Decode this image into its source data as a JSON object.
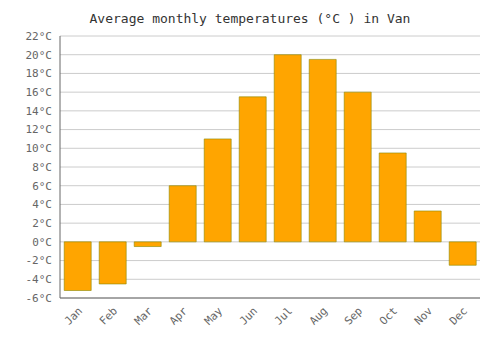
{
  "chart_data": {
    "type": "bar",
    "title": "Average monthly temperatures (°C ) in Van",
    "categories": [
      "Jan",
      "Feb",
      "Mar",
      "Apr",
      "May",
      "Jun",
      "Jul",
      "Aug",
      "Sep",
      "Oct",
      "Nov",
      "Dec"
    ],
    "values": [
      -5.2,
      -4.5,
      -0.5,
      6.0,
      11.0,
      15.5,
      20.0,
      19.5,
      16.0,
      9.5,
      3.3,
      -2.5
    ],
    "color": "#FFA500",
    "ylim": [
      -6,
      22
    ],
    "yticks": [
      {
        "value": -6,
        "label": "-6°C"
      },
      {
        "value": -4,
        "label": "-4°C"
      },
      {
        "value": -2,
        "label": "-2°C"
      },
      {
        "value": 0,
        "label": "0°C"
      },
      {
        "value": 2,
        "label": "2°C"
      },
      {
        "value": 4,
        "label": "4°C"
      },
      {
        "value": 6,
        "label": "6°C"
      },
      {
        "value": 8,
        "label": "8°C"
      },
      {
        "value": 10,
        "label": "10°C"
      },
      {
        "value": 12,
        "label": "12°C"
      },
      {
        "value": 14,
        "label": "14°C"
      },
      {
        "value": 16,
        "label": "16°C"
      },
      {
        "value": 18,
        "label": "18°C"
      },
      {
        "value": 20,
        "label": "20°C"
      },
      {
        "value": 22,
        "label": "22°C"
      }
    ],
    "grid": true
  }
}
